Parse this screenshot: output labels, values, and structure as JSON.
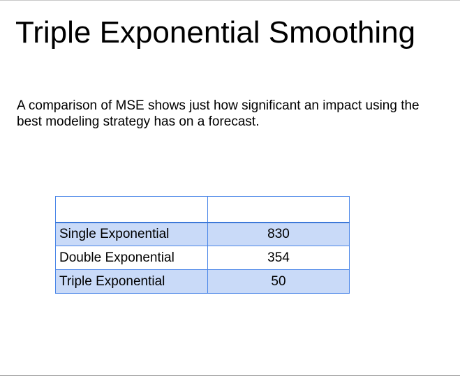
{
  "slide": {
    "title": "Triple Exponential Smoothing",
    "body_text": "A comparison of MSE shows just how significant an impact using the best modeling strategy has on a forecast."
  },
  "table": {
    "header": [
      "",
      ""
    ],
    "rows": [
      {
        "method": "Single Exponential",
        "mse": "830"
      },
      {
        "method": "Double Exponential",
        "mse": "354"
      },
      {
        "method": "Triple Exponential",
        "mse": "50"
      }
    ]
  },
  "colors": {
    "table_border": "#4a86e8",
    "row_shade": "#c9daf8"
  }
}
